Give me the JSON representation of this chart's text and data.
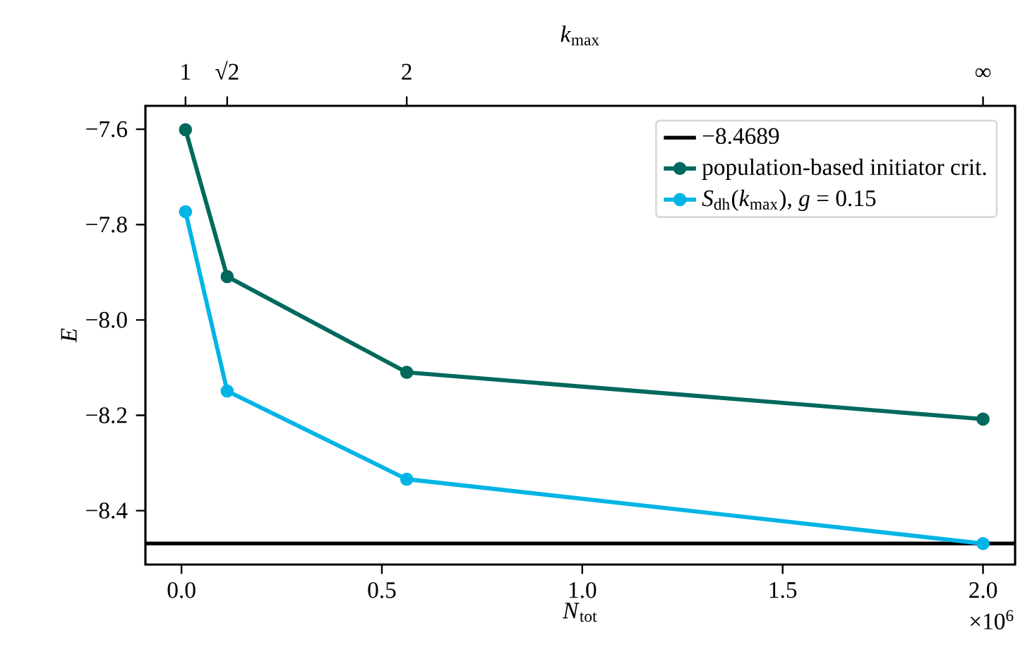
{
  "chart_data": {
    "type": "line",
    "xlabel": "*N*$_{tot}$",
    "ylabel": "*E*",
    "x2label": "*k*$_{max}$",
    "x": [
      0.01,
      0.114,
      0.562,
      2.0
    ],
    "series": [
      {
        "name": "population-based initiator crit.",
        "color": "#00695e",
        "values": [
          -7.601,
          -7.909,
          -8.11,
          -8.208
        ]
      },
      {
        "name": "*S*$_{dh}$(*k*$_{max}$), *g* = 0.15",
        "color": "#00b4e6",
        "values": [
          -7.773,
          -8.149,
          -8.334,
          -8.469
        ]
      }
    ],
    "xlim": [
      -0.09,
      2.08
    ],
    "ylim": [
      -8.513,
      -7.551
    ],
    "xticks": [
      {
        "value": 0.0,
        "label": "0.0"
      },
      {
        "value": 0.5,
        "label": "0.5"
      },
      {
        "value": 1.0,
        "label": "1.0"
      },
      {
        "value": 1.5,
        "label": "1.5"
      },
      {
        "value": 2.0,
        "label": "2.0"
      }
    ],
    "yticks": [
      {
        "value": -8.4,
        "label": "−8.4"
      },
      {
        "value": -8.2,
        "label": "−8.2"
      },
      {
        "value": -8.0,
        "label": "−8.0"
      },
      {
        "value": -7.8,
        "label": "−7.8"
      },
      {
        "value": -7.6,
        "label": "−7.6"
      }
    ],
    "ref_lines": [
      {
        "axis": "y",
        "value": -8.4689,
        "label": "−8.4689",
        "color": "#000000"
      }
    ],
    "annotations": [
      "×10$^{6}$",
      "1",
      "√2",
      "2",
      "∞"
    ],
    "legend": "top right",
    "marker": "circle",
    "line_style": "solid",
    "grid": false
  }
}
